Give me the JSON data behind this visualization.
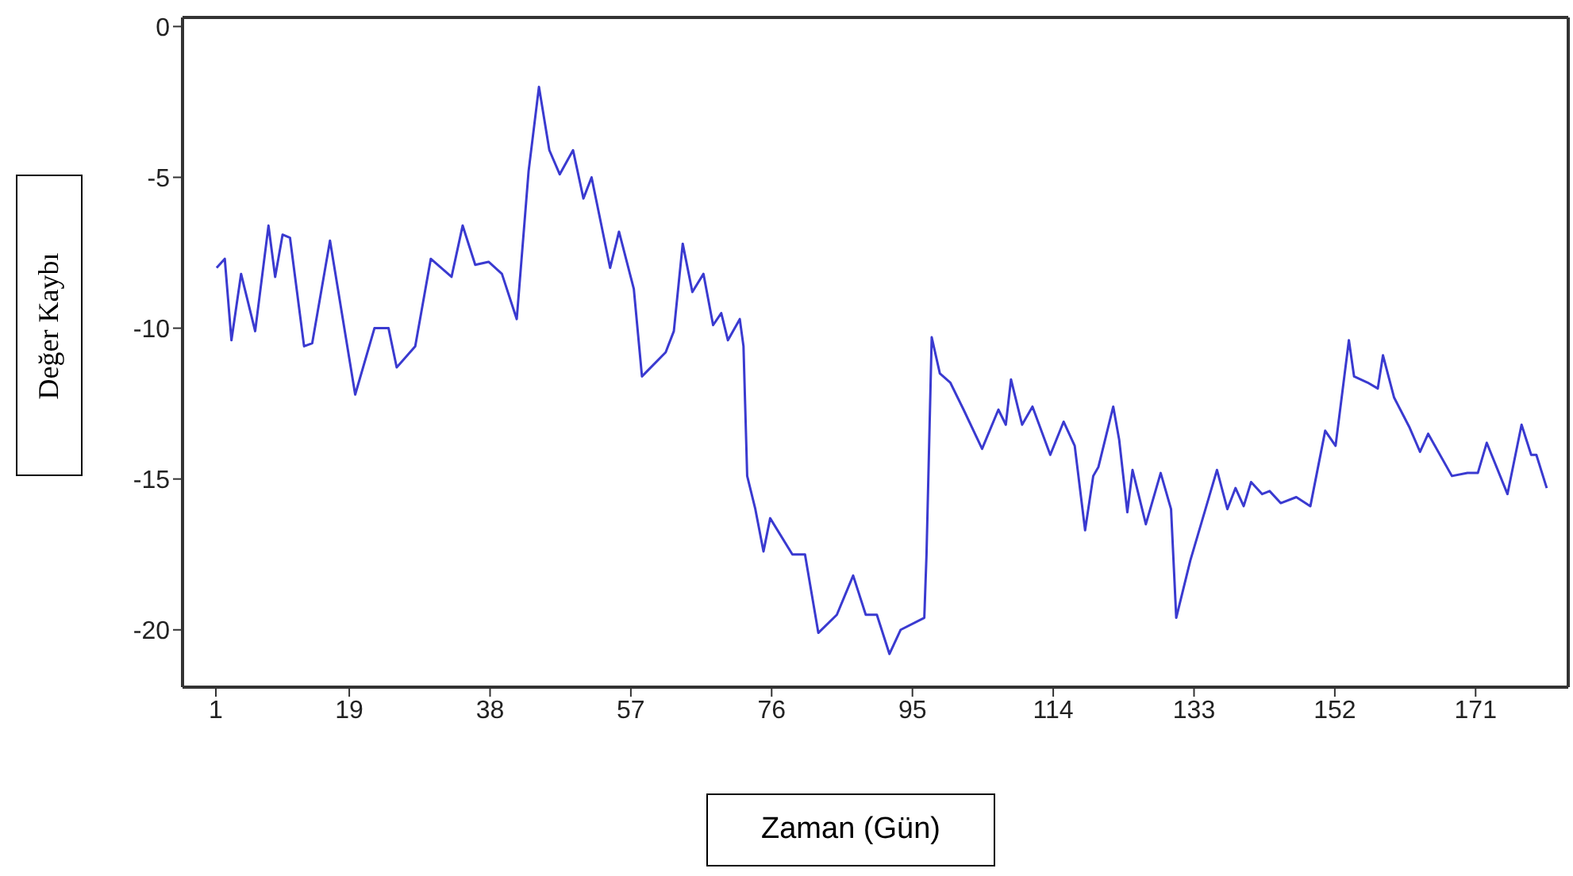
{
  "chart_data": {
    "type": "line",
    "xlabel": "Zaman (Gün)",
    "ylabel": "Değer Kaybı",
    "xlim": [
      -3.5,
      183.5
    ],
    "xticks": [
      1,
      19,
      38,
      57,
      76,
      95,
      114,
      133,
      152,
      171
    ],
    "ylim": [
      -21.9,
      0.3
    ],
    "yticks": [
      0,
      -5,
      -10,
      -15,
      -20
    ],
    "grid": false,
    "legend": false,
    "marker": "none",
    "line_style": "solid",
    "series": [
      {
        "color": "#3a3ad0",
        "x": [
          1.1,
          2.2,
          3.1,
          4.4,
          6.3,
          8.1,
          9,
          10,
          11,
          12.9,
          14,
          16.4,
          19.8,
          22.4,
          24.3,
          25.4,
          27.9,
          30,
          32.8,
          34.3,
          36,
          37.8,
          39.6,
          41.6,
          43.2,
          44.6,
          46,
          47.4,
          49.2,
          50.6,
          51.7,
          54.2,
          55.4,
          57.4,
          58.5,
          61.7,
          62.8,
          64,
          65.3,
          66.8,
          68.1,
          69.2,
          70.1,
          71.7,
          72.2,
          72.7,
          73.8,
          74.9,
          75.8,
          78.8,
          80.5,
          82.3,
          84.8,
          87,
          88.7,
          90.2,
          91.9,
          93.4,
          96.6,
          96.9,
          97.6,
          98.7,
          100.1,
          101.9,
          104.4,
          106.6,
          107.6,
          108.3,
          109.8,
          111.2,
          113.6,
          115.4,
          116.9,
          118.3,
          119.4,
          120.1,
          122.1,
          122.9,
          124,
          124.7,
          126.5,
          128.5,
          129.9,
          130.6,
          132.5,
          136.1,
          137.5,
          138.6,
          139.7,
          140.7,
          142.2,
          143.2,
          144.7,
          146.8,
          148.7,
          150.7,
          152.1,
          153.9,
          154.6,
          156.4,
          157.8,
          158.5,
          160,
          162.1,
          163.5,
          164.6,
          167.8,
          169.9,
          171.3,
          172.5,
          175.3,
          177.2,
          178.5,
          179.2,
          180.6
        ],
        "values": [
          -8,
          -7.7,
          -10.4,
          -8.2,
          -10.1,
          -6.6,
          -8.3,
          -6.9,
          -7,
          -10.6,
          -10.5,
          -7.1,
          -12.2,
          -10,
          -10,
          -11.3,
          -10.6,
          -7.7,
          -8.3,
          -6.6,
          -7.9,
          -7.8,
          -8.2,
          -9.7,
          -4.8,
          -2,
          -4.1,
          -4.9,
          -4.1,
          -5.7,
          -5,
          -8,
          -6.8,
          -8.7,
          -11.6,
          -10.8,
          -10.1,
          -7.2,
          -8.8,
          -8.2,
          -9.9,
          -9.5,
          -10.4,
          -9.7,
          -10.6,
          -14.9,
          -16,
          -17.4,
          -16.3,
          -17.5,
          -17.5,
          -20.1,
          -19.5,
          -18.2,
          -19.5,
          -19.5,
          -20.8,
          -20,
          -19.6,
          -17.5,
          -10.3,
          -11.5,
          -11.8,
          -12.7,
          -14,
          -12.7,
          -13.2,
          -11.7,
          -13.2,
          -12.6,
          -14.2,
          -13.1,
          -13.9,
          -16.7,
          -14.9,
          -14.6,
          -12.6,
          -13.7,
          -16.1,
          -14.7,
          -16.5,
          -14.8,
          -16,
          -19.6,
          -17.7,
          -14.7,
          -16,
          -15.3,
          -15.9,
          -15.1,
          -15.5,
          -15.4,
          -15.8,
          -15.6,
          -15.9,
          -13.4,
          -13.9,
          -10.4,
          -11.6,
          -11.8,
          -12,
          -10.9,
          -12.3,
          -13.3,
          -14.1,
          -13.5,
          -14.9,
          -14.8,
          -14.8,
          -13.8,
          -15.5,
          -13.2,
          -14.2,
          -14.2,
          -15.3
        ]
      }
    ]
  }
}
